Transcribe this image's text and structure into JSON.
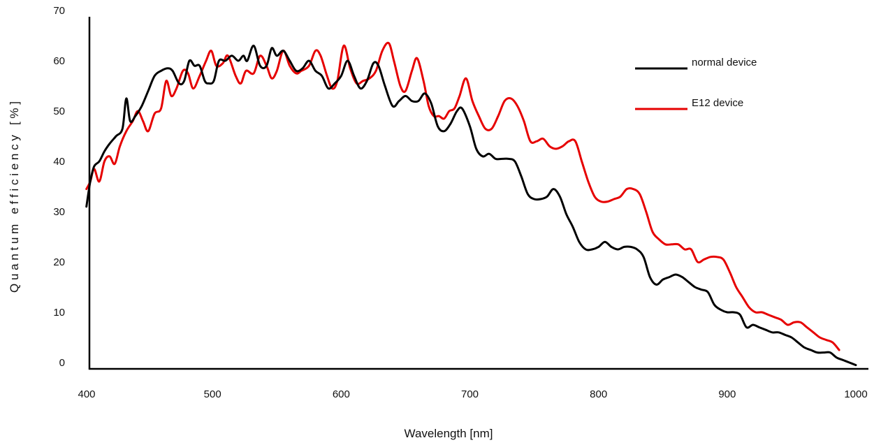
{
  "chart_data": {
    "type": "line",
    "title": "",
    "xlabel": "Wavelength [nm]",
    "ylabel": "Q u a n t u m   e f f i c i e n c y   [ % ]",
    "xlim": [
      400,
      1010
    ],
    "ylim": [
      0,
      70
    ],
    "x_ticks": [
      400,
      500,
      600,
      700,
      800,
      900,
      1000
    ],
    "y_ticks": [
      0,
      10,
      20,
      30,
      40,
      50,
      60,
      70
    ],
    "legend_position": "top-right",
    "series": [
      {
        "name": "normal device",
        "color": "#000000",
        "points": [
          [
            402,
            31
          ],
          [
            405,
            36
          ],
          [
            408,
            39
          ],
          [
            412,
            40
          ],
          [
            416,
            42
          ],
          [
            420,
            43.5
          ],
          [
            425,
            45
          ],
          [
            430,
            46.5
          ],
          [
            433,
            52.5
          ],
          [
            436,
            48
          ],
          [
            440,
            49
          ],
          [
            445,
            51
          ],
          [
            450,
            54
          ],
          [
            455,
            57
          ],
          [
            460,
            58
          ],
          [
            465,
            58.5
          ],
          [
            469,
            58
          ],
          [
            474,
            55.5
          ],
          [
            478,
            56
          ],
          [
            482,
            60
          ],
          [
            486,
            59
          ],
          [
            490,
            59
          ],
          [
            494,
            56
          ],
          [
            497,
            55.5
          ],
          [
            501,
            56
          ],
          [
            505,
            60
          ],
          [
            510,
            60
          ],
          [
            515,
            61
          ],
          [
            520,
            60
          ],
          [
            524,
            61
          ],
          [
            527,
            60
          ],
          [
            532,
            63
          ],
          [
            537,
            59
          ],
          [
            542,
            59
          ],
          [
            546,
            62.5
          ],
          [
            550,
            61
          ],
          [
            555,
            62
          ],
          [
            560,
            60
          ],
          [
            565,
            58
          ],
          [
            570,
            58.5
          ],
          [
            575,
            60
          ],
          [
            580,
            58
          ],
          [
            585,
            57
          ],
          [
            590,
            54.5
          ],
          [
            595,
            55.5
          ],
          [
            600,
            57
          ],
          [
            605,
            60
          ],
          [
            610,
            57
          ],
          [
            615,
            54.5
          ],
          [
            620,
            56
          ],
          [
            625,
            59.5
          ],
          [
            629,
            59
          ],
          [
            634,
            55
          ],
          [
            640,
            51
          ],
          [
            645,
            52
          ],
          [
            650,
            53
          ],
          [
            655,
            52
          ],
          [
            660,
            52
          ],
          [
            665,
            53.5
          ],
          [
            670,
            51.5
          ],
          [
            675,
            47
          ],
          [
            680,
            46
          ],
          [
            685,
            47.5
          ],
          [
            690,
            50
          ],
          [
            694,
            50.5
          ],
          [
            700,
            47
          ],
          [
            705,
            42.5
          ],
          [
            710,
            41
          ],
          [
            715,
            41.5
          ],
          [
            720,
            40.5
          ],
          [
            725,
            40.5
          ],
          [
            730,
            40.5
          ],
          [
            735,
            40
          ],
          [
            740,
            37
          ],
          [
            745,
            33.5
          ],
          [
            750,
            32.5
          ],
          [
            755,
            32.5
          ],
          [
            760,
            33
          ],
          [
            765,
            34.5
          ],
          [
            770,
            33
          ],
          [
            775,
            29.5
          ],
          [
            780,
            27
          ],
          [
            785,
            24
          ],
          [
            790,
            22.5
          ],
          [
            795,
            22.5
          ],
          [
            800,
            23
          ],
          [
            805,
            24
          ],
          [
            810,
            23
          ],
          [
            815,
            22.5
          ],
          [
            820,
            23
          ],
          [
            825,
            23
          ],
          [
            830,
            22.5
          ],
          [
            835,
            21
          ],
          [
            840,
            17
          ],
          [
            845,
            15.5
          ],
          [
            850,
            16.5
          ],
          [
            855,
            17
          ],
          [
            860,
            17.5
          ],
          [
            865,
            17
          ],
          [
            870,
            16
          ],
          [
            875,
            15
          ],
          [
            880,
            14.5
          ],
          [
            885,
            14
          ],
          [
            890,
            11.5
          ],
          [
            895,
            10.5
          ],
          [
            900,
            10
          ],
          [
            905,
            10
          ],
          [
            910,
            9.5
          ],
          [
            915,
            7
          ],
          [
            920,
            7.5
          ],
          [
            925,
            7
          ],
          [
            930,
            6.5
          ],
          [
            935,
            6
          ],
          [
            940,
            6
          ],
          [
            945,
            5.5
          ],
          [
            950,
            5
          ],
          [
            955,
            4
          ],
          [
            960,
            3
          ],
          [
            965,
            2.5
          ],
          [
            970,
            2
          ],
          [
            975,
            2
          ],
          [
            980,
            2
          ],
          [
            985,
            1
          ],
          [
            990,
            0.5
          ],
          [
            995,
            0
          ],
          [
            1000,
            -0.5
          ]
        ]
      },
      {
        "name": "E12 device",
        "color": "#e60000",
        "points": [
          [
            402,
            34.5
          ],
          [
            405,
            36
          ],
          [
            408,
            38.5
          ],
          [
            412,
            36
          ],
          [
            416,
            40
          ],
          [
            420,
            41
          ],
          [
            424,
            39.5
          ],
          [
            428,
            43
          ],
          [
            433,
            46
          ],
          [
            438,
            48
          ],
          [
            442,
            50
          ],
          [
            446,
            48
          ],
          [
            450,
            46
          ],
          [
            455,
            49.5
          ],
          [
            460,
            50.5
          ],
          [
            464,
            56
          ],
          [
            468,
            53
          ],
          [
            472,
            54.5
          ],
          [
            477,
            58
          ],
          [
            481,
            57.5
          ],
          [
            485,
            54.5
          ],
          [
            490,
            57
          ],
          [
            495,
            60
          ],
          [
            499,
            62
          ],
          [
            503,
            59
          ],
          [
            508,
            59.5
          ],
          [
            512,
            61
          ],
          [
            518,
            57
          ],
          [
            522,
            55.5
          ],
          [
            526,
            58
          ],
          [
            532,
            57.5
          ],
          [
            537,
            61
          ],
          [
            542,
            59
          ],
          [
            546,
            56.5
          ],
          [
            550,
            58
          ],
          [
            555,
            62
          ],
          [
            560,
            59
          ],
          [
            565,
            57.5
          ],
          [
            569,
            58
          ],
          [
            575,
            59
          ],
          [
            580,
            62
          ],
          [
            584,
            61
          ],
          [
            589,
            57
          ],
          [
            593,
            54.5
          ],
          [
            597,
            56
          ],
          [
            602,
            63
          ],
          [
            607,
            58.5
          ],
          [
            612,
            55.5
          ],
          [
            617,
            56
          ],
          [
            622,
            56.5
          ],
          [
            627,
            58
          ],
          [
            632,
            62
          ],
          [
            637,
            63.5
          ],
          [
            641,
            60
          ],
          [
            646,
            55
          ],
          [
            650,
            54
          ],
          [
            655,
            58
          ],
          [
            659,
            60.5
          ],
          [
            664,
            56
          ],
          [
            668,
            51
          ],
          [
            672,
            49
          ],
          [
            676,
            49
          ],
          [
            680,
            48.5
          ],
          [
            684,
            50
          ],
          [
            688,
            50.5
          ],
          [
            692,
            53
          ],
          [
            697,
            56.5
          ],
          [
            702,
            52
          ],
          [
            707,
            49
          ],
          [
            712,
            46.5
          ],
          [
            717,
            46.5
          ],
          [
            722,
            49
          ],
          [
            727,
            52
          ],
          [
            732,
            52.5
          ],
          [
            737,
            51
          ],
          [
            742,
            48
          ],
          [
            747,
            44
          ],
          [
            752,
            44
          ],
          [
            757,
            44.5
          ],
          [
            762,
            43
          ],
          [
            767,
            42.5
          ],
          [
            772,
            43
          ],
          [
            777,
            44
          ],
          [
            782,
            44
          ],
          [
            787,
            40
          ],
          [
            792,
            36
          ],
          [
            797,
            33
          ],
          [
            802,
            32
          ],
          [
            807,
            32
          ],
          [
            812,
            32.5
          ],
          [
            817,
            33
          ],
          [
            822,
            34.5
          ],
          [
            827,
            34.5
          ],
          [
            832,
            33.5
          ],
          [
            837,
            30
          ],
          [
            842,
            26
          ],
          [
            847,
            24.5
          ],
          [
            852,
            23.5
          ],
          [
            857,
            23.5
          ],
          [
            862,
            23.5
          ],
          [
            867,
            22.5
          ],
          [
            872,
            22.5
          ],
          [
            877,
            20
          ],
          [
            882,
            20.5
          ],
          [
            887,
            21
          ],
          [
            892,
            21
          ],
          [
            897,
            20.5
          ],
          [
            902,
            18
          ],
          [
            907,
            15
          ],
          [
            912,
            13
          ],
          [
            917,
            11
          ],
          [
            922,
            10
          ],
          [
            927,
            10
          ],
          [
            932,
            9.5
          ],
          [
            937,
            9
          ],
          [
            942,
            8.5
          ],
          [
            947,
            7.5
          ],
          [
            952,
            8
          ],
          [
            957,
            8
          ],
          [
            962,
            7
          ],
          [
            967,
            6
          ],
          [
            972,
            5
          ],
          [
            977,
            4.5
          ],
          [
            982,
            4
          ],
          [
            987,
            2.5
          ]
        ]
      }
    ]
  }
}
